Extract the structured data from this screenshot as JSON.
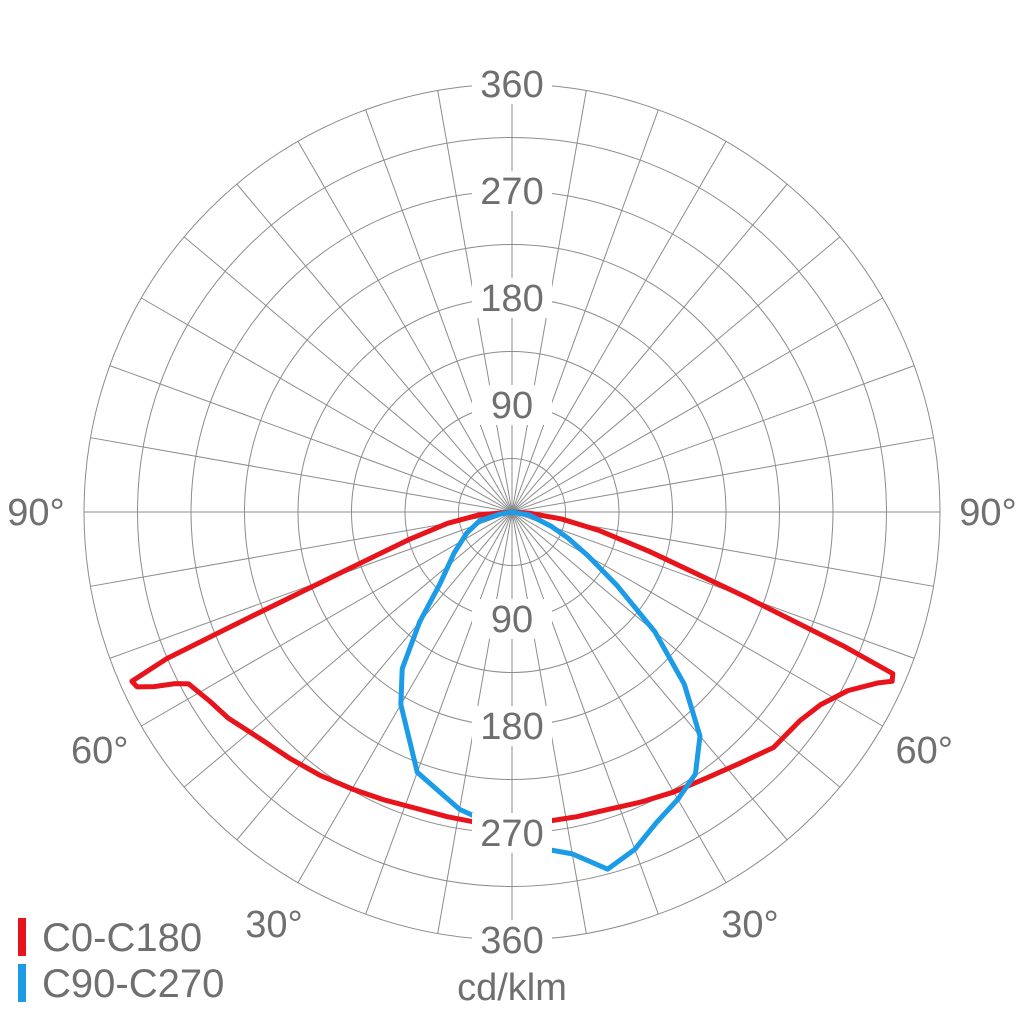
{
  "chart_data": {
    "type": "polar",
    "unit": "cd/klm",
    "radial_ticks": [
      90,
      180,
      270,
      360
    ],
    "radial_max": 360,
    "spoke_step_deg": 10,
    "angle_labels": [
      {
        "angle": -90,
        "text": "90°"
      },
      {
        "angle": 90,
        "text": "90°"
      },
      {
        "angle": -60,
        "text": "60°"
      },
      {
        "angle": 60,
        "text": "60°"
      },
      {
        "angle": -30,
        "text": "30°"
      },
      {
        "angle": 30,
        "text": "30°"
      }
    ],
    "series": [
      {
        "name": "C0-C180",
        "color": "#e8141c",
        "points": [
          [
            -90,
            0
          ],
          [
            -85,
            28
          ],
          [
            -80,
            55
          ],
          [
            -75,
            90
          ],
          [
            -70,
            165
          ],
          [
            -68,
            245
          ],
          [
            -67,
            315
          ],
          [
            -66,
            350
          ],
          [
            -65,
            348
          ],
          [
            -64,
            335
          ],
          [
            -63,
            318
          ],
          [
            -62,
            308
          ],
          [
            -58,
            300
          ],
          [
            -54,
            295
          ],
          [
            -48,
            285
          ],
          [
            -42,
            279
          ],
          [
            -36,
            274
          ],
          [
            -30,
            269
          ],
          [
            -24,
            265
          ],
          [
            -18,
            262
          ],
          [
            -12,
            262
          ],
          [
            -6,
            263
          ],
          [
            0,
            263
          ],
          [
            6,
            262
          ],
          [
            12,
            262
          ],
          [
            18,
            263
          ],
          [
            24,
            267
          ],
          [
            30,
            272
          ],
          [
            36,
            277
          ],
          [
            42,
            285
          ],
          [
            48,
            296
          ],
          [
            54,
            299
          ],
          [
            58,
            306
          ],
          [
            62,
            320
          ],
          [
            65,
            340
          ],
          [
            66,
            350
          ],
          [
            67,
            348
          ],
          [
            68,
            300
          ],
          [
            70,
            210
          ],
          [
            74,
            120
          ],
          [
            78,
            75
          ],
          [
            82,
            42
          ],
          [
            86,
            15
          ],
          [
            90,
            0
          ]
        ]
      },
      {
        "name": "C90-C270",
        "color": "#1c9be6",
        "points": [
          [
            -90,
            0
          ],
          [
            -80,
            10
          ],
          [
            -75,
            28
          ],
          [
            -65,
            42
          ],
          [
            -55,
            59
          ],
          [
            -45,
            86
          ],
          [
            -40,
            121
          ],
          [
            -35,
            161
          ],
          [
            -30,
            187
          ],
          [
            -20,
            233
          ],
          [
            -10,
            254
          ],
          [
            0,
            270
          ],
          [
            5,
            284
          ],
          [
            10,
            292
          ],
          [
            15,
            311
          ],
          [
            20,
            302
          ],
          [
            25,
            288
          ],
          [
            30,
            279
          ],
          [
            35,
            269
          ],
          [
            40,
            246
          ],
          [
            45,
            205
          ],
          [
            50,
            157
          ],
          [
            55,
            108
          ],
          [
            60,
            74
          ],
          [
            65,
            52
          ],
          [
            70,
            35
          ],
          [
            80,
            15
          ],
          [
            90,
            0
          ]
        ]
      }
    ]
  }
}
